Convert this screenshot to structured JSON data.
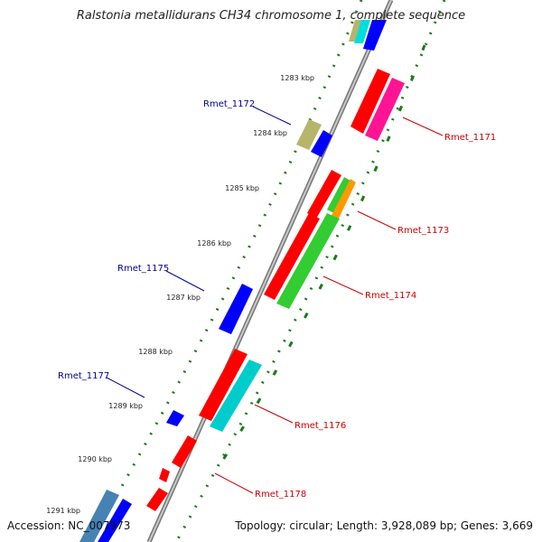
{
  "title": "Ralstonia metallidurans CH34 chromosome 1, complete sequence",
  "accession": "Accession: NC_007973",
  "topology": "Topology: circular; Length: 3,928,089 bp; Genes: 3,669",
  "ticks": [
    "1283 kbp",
    "1284 kbp",
    "1285 kbp",
    "1286 kbp",
    "1287 kbp",
    "1288 kbp",
    "1289 kbp",
    "1290 kbp",
    "1291 kbp"
  ],
  "gene_labels": {
    "rmet_1171": "Rmet_1171",
    "rmet_1172": "Rmet_1172",
    "rmet_1173": "Rmet_1173",
    "rmet_1174": "Rmet_1174",
    "rmet_1175": "Rmet_1175",
    "rmet_1176": "Rmet_1176",
    "rmet_1177": "Rmet_1177",
    "rmet_1178": "Rmet_1178"
  },
  "colors": {
    "red": "#ff0000",
    "blue": "#0000ff",
    "green": "#33cc33",
    "cyan": "#00cccc",
    "magenta": "#ff1493",
    "orange": "#ff9900",
    "khaki": "#b5b56b",
    "steelblue": "#4682b4",
    "backbone": "#888888",
    "dots": "#1a7a1a",
    "label_red": "#cc0000",
    "label_blue": "#000099"
  }
}
